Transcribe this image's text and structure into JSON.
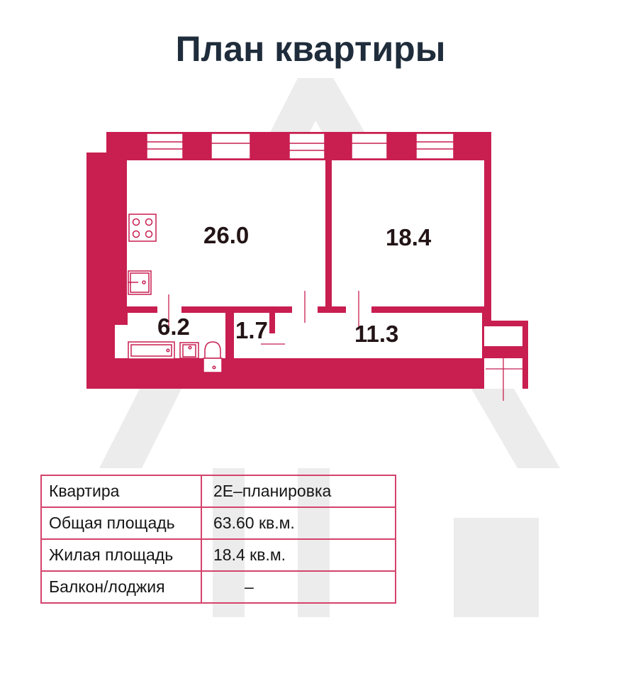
{
  "title": "План квартиры",
  "colors": {
    "wall": "#c81e50",
    "table_border": "#d4436c",
    "title": "#1f2c3b",
    "watermark": "#ececec"
  },
  "rooms": [
    {
      "name": "kitchen-living",
      "area": "26.0"
    },
    {
      "name": "bedroom",
      "area": "18.4"
    },
    {
      "name": "bathroom",
      "area": "6.2"
    },
    {
      "name": "storage",
      "area": "1.7"
    },
    {
      "name": "hallway",
      "area": "11.3"
    }
  ],
  "fixtures": [
    "stove-icon",
    "sink-icon",
    "bathtub-icon",
    "washbasin-icon",
    "toilet-icon"
  ],
  "info_table": [
    {
      "label": "Квартира",
      "value": "2Е–планировка"
    },
    {
      "label": "Общая площадь",
      "value": "63.60 кв.м."
    },
    {
      "label": "Жилая площадь",
      "value": "18.4 кв.м."
    },
    {
      "label": "Балкон/лоджия",
      "value": "–"
    }
  ]
}
